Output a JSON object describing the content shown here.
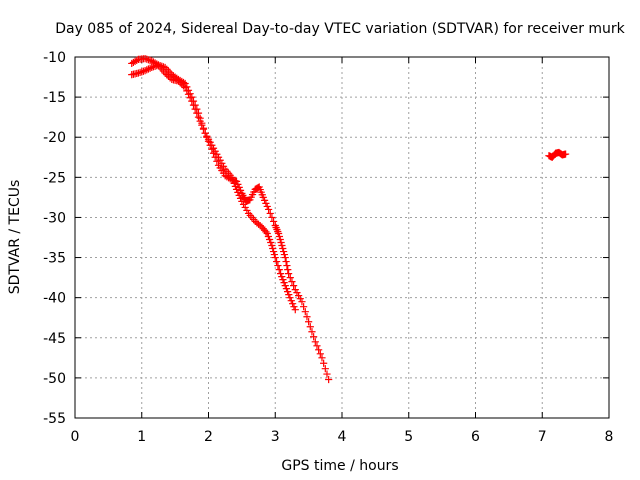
{
  "chart_data": {
    "type": "scatter",
    "title": "Day 085 of 2024, Sidereal Day-to-day VTEC variation (SDTVAR) for receiver murk",
    "xlabel": "GPS time / hours",
    "ylabel": "SDTVAR / TECUs",
    "xlim": [
      0,
      8
    ],
    "ylim": [
      -55,
      -10
    ],
    "xticks": [
      "0",
      "1",
      "2",
      "3",
      "4",
      "5",
      "6",
      "7",
      "8"
    ],
    "yticks": [
      "-10",
      "-15",
      "-20",
      "-25",
      "-30",
      "-35",
      "-40",
      "-45",
      "-50",
      "-55"
    ],
    "grid": true,
    "marker": "plus",
    "color": "#ff0000",
    "series": [
      {
        "points": [
          [
            0.85,
            -12.2
          ],
          [
            0.95,
            -12.0
          ],
          [
            1.05,
            -11.7
          ],
          [
            1.15,
            -11.3
          ],
          [
            1.25,
            -11.0
          ],
          [
            1.35,
            -11.3
          ],
          [
            1.45,
            -12.2
          ],
          [
            1.55,
            -12.8
          ],
          [
            1.65,
            -13.3
          ],
          [
            1.75,
            -15.0
          ],
          [
            1.85,
            -17.0
          ],
          [
            1.95,
            -19.5
          ],
          [
            2.05,
            -21.5
          ],
          [
            2.15,
            -23.5
          ],
          [
            2.25,
            -24.8
          ],
          [
            2.35,
            -25.3
          ],
          [
            2.42,
            -25.5
          ],
          [
            2.5,
            -27.0
          ],
          [
            2.56,
            -28.0
          ],
          [
            2.62,
            -27.8
          ],
          [
            2.7,
            -26.5
          ],
          [
            2.76,
            -26.2
          ],
          [
            2.82,
            -27.5
          ],
          [
            2.9,
            -29.0
          ],
          [
            3.0,
            -31.0
          ],
          [
            3.05,
            -32.0
          ],
          [
            3.1,
            -33.5
          ],
          [
            3.15,
            -35.0
          ],
          [
            3.2,
            -37.0
          ],
          [
            3.3,
            -39.0
          ],
          [
            3.4,
            -40.5
          ],
          [
            3.5,
            -43.0
          ],
          [
            3.6,
            -45.5
          ],
          [
            3.7,
            -47.5
          ],
          [
            3.8,
            -50.2
          ]
        ]
      },
      {
        "points": [
          [
            0.85,
            -10.8
          ],
          [
            0.95,
            -10.3
          ],
          [
            1.05,
            -10.2
          ],
          [
            1.15,
            -10.5
          ],
          [
            1.25,
            -11.0
          ],
          [
            1.35,
            -12.0
          ],
          [
            1.45,
            -12.8
          ],
          [
            1.55,
            -13.0
          ],
          [
            1.65,
            -13.8
          ],
          [
            1.75,
            -15.5
          ],
          [
            1.85,
            -17.5
          ],
          [
            1.95,
            -19.5
          ],
          [
            2.05,
            -21.0
          ],
          [
            2.15,
            -22.5
          ],
          [
            2.25,
            -24.0
          ],
          [
            2.35,
            -25.0
          ],
          [
            2.42,
            -26.5
          ],
          [
            2.5,
            -28.0
          ],
          [
            2.6,
            -29.5
          ],
          [
            2.7,
            -30.5
          ],
          [
            2.8,
            -31.2
          ],
          [
            2.88,
            -32.0
          ],
          [
            2.95,
            -33.5
          ],
          [
            3.0,
            -35.0
          ],
          [
            3.08,
            -37.0
          ],
          [
            3.15,
            -38.5
          ],
          [
            3.22,
            -40.0
          ],
          [
            3.3,
            -41.5
          ]
        ]
      },
      {
        "points": [
          [
            7.1,
            -22.3
          ],
          [
            7.15,
            -22.5
          ],
          [
            7.2,
            -22.0
          ],
          [
            7.25,
            -21.9
          ],
          [
            7.3,
            -22.2
          ],
          [
            7.35,
            -22.1
          ]
        ]
      }
    ]
  }
}
